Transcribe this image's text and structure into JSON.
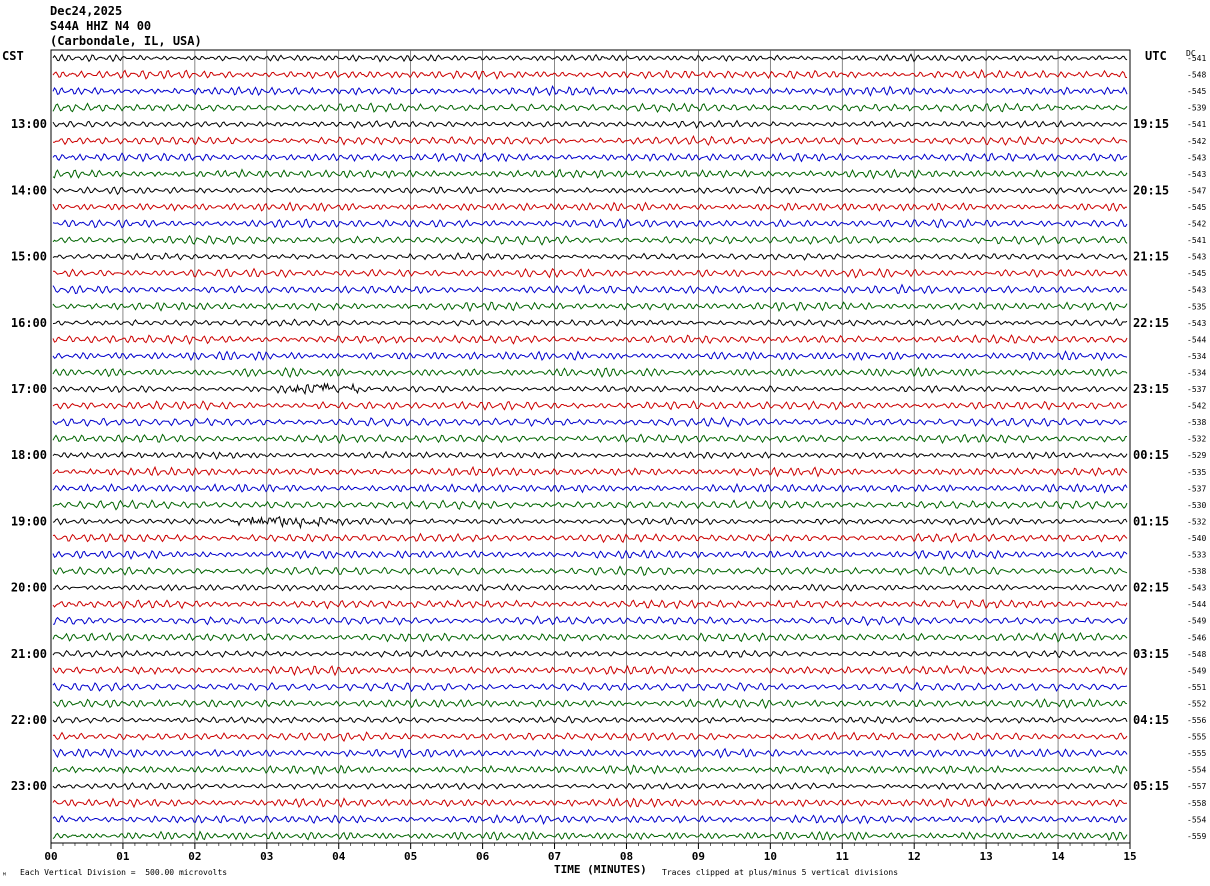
{
  "header": {
    "date": "Dec24,2025",
    "station": "S44A HHZ N4 00",
    "location": "(Carbondale, IL, USA)"
  },
  "corners": {
    "left_tz": "CST",
    "right_tz": "UTC",
    "dc_label": "DC"
  },
  "footer": {
    "scale_text": "Each Vertical Division =  500.00 microvolts",
    "clip_text": "Traces clipped at plus/minus 5 vertical divisions",
    "corner_mark": "ᴹ"
  },
  "colors": [
    "#000000",
    "#cc0000",
    "#0000cc",
    "#006400"
  ],
  "chart_data": {
    "type": "line",
    "title": "S44A HHZ N4 00",
    "xlabel": "TIME (MINUTES)",
    "x_ticks": [
      "00",
      "01",
      "02",
      "03",
      "04",
      "05",
      "06",
      "07",
      "08",
      "09",
      "10",
      "11",
      "12",
      "13",
      "14",
      "15"
    ],
    "xlim": [
      0,
      15
    ],
    "trace_count": 48,
    "trace_minutes": 15,
    "left_hour_labels": [
      "13:00",
      "14:00",
      "15:00",
      "16:00",
      "17:00",
      "18:00",
      "19:00",
      "20:00",
      "21:00",
      "22:00",
      "23:00"
    ],
    "right_hour_labels": [
      "19:15",
      "20:15",
      "21:15",
      "22:15",
      "23:15",
      "00:15",
      "01:15",
      "02:15",
      "03:15",
      "04:15",
      "05:15"
    ],
    "dc_offsets": [
      "-541",
      "-548",
      "-545",
      "-539",
      "-541",
      "-542",
      "-543",
      "-543",
      "-547",
      "-545",
      "-542",
      "-541",
      "-543",
      "-545",
      "-543",
      "-535",
      "-543",
      "-544",
      "-534",
      "-534",
      "-537",
      "-542",
      "-538",
      "-532",
      "-529",
      "-535",
      "-537",
      "-530",
      "-532",
      "-540",
      "-533",
      "-538",
      "-543",
      "-544",
      "-549",
      "-546",
      "-548",
      "-549",
      "-551",
      "-552",
      "-556",
      "-555",
      "-555",
      "-554",
      "-557",
      "-558",
      "-554",
      "-559"
    ],
    "grid": true,
    "trace_colors_cycle": [
      "black",
      "red",
      "blue",
      "green"
    ],
    "notable_events": [
      {
        "trace_index": 20,
        "minute_start": 3.0,
        "minute_end": 4.6,
        "description": "larger amplitude bursts"
      },
      {
        "trace_index": 28,
        "minute_start": 2.2,
        "minute_end": 4.2,
        "description": "larger amplitude bursts"
      }
    ]
  }
}
